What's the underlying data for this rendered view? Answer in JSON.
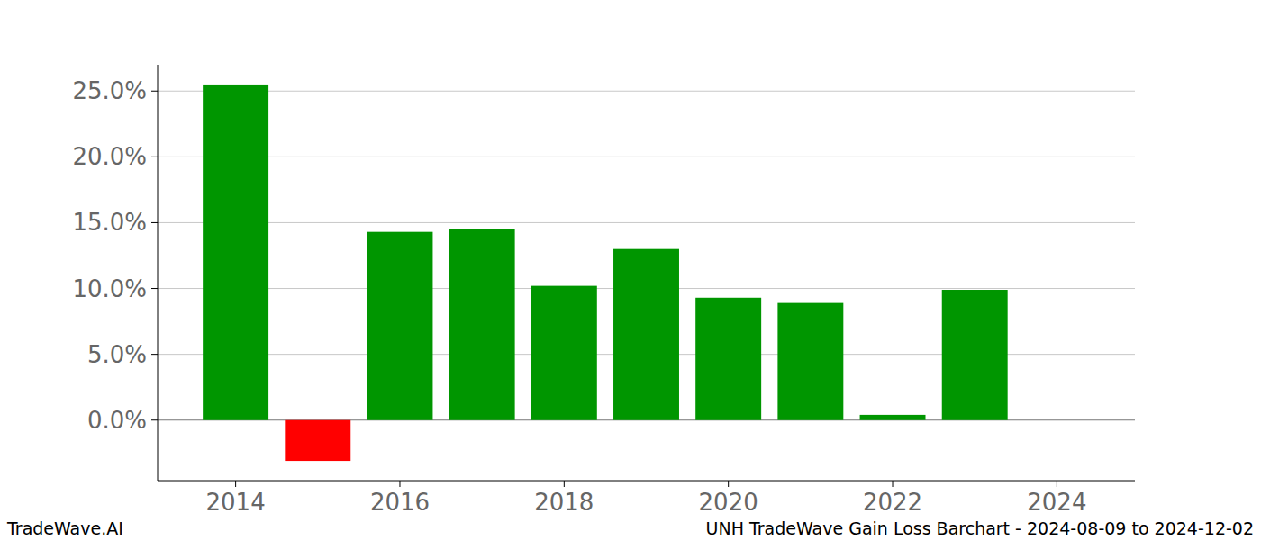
{
  "chart_data": {
    "type": "bar",
    "title": "UNH TradeWave Gain Loss Barchart - 2024-08-09 to 2024-12-02",
    "annotations": [
      "TradeWave.AI"
    ],
    "x": [
      2014,
      2015,
      2016,
      2017,
      2018,
      2019,
      2020,
      2021,
      2022,
      2023
    ],
    "values": [
      25.5,
      -3.1,
      14.3,
      14.5,
      10.2,
      13.0,
      9.3,
      8.9,
      0.4,
      9.9
    ],
    "colors": [
      "#009600",
      "#ff0000",
      "#009600",
      "#009600",
      "#009600",
      "#009600",
      "#009600",
      "#009600",
      "#009600",
      "#009600"
    ],
    "xlim": [
      2013.05,
      2024.95
    ],
    "xticks": [
      2014,
      2016,
      2018,
      2020,
      2022,
      2024
    ],
    "ylim": [
      -4.6,
      27.0
    ],
    "yticks": [
      {
        "value": 0,
        "label": "0.0%"
      },
      {
        "value": 5,
        "label": "5.0%"
      },
      {
        "value": 10,
        "label": "10.0%"
      },
      {
        "value": 15,
        "label": "15.0%"
      },
      {
        "value": 20,
        "label": "20.0%"
      },
      {
        "value": 25,
        "label": "25.0%"
      }
    ],
    "grid": true
  }
}
